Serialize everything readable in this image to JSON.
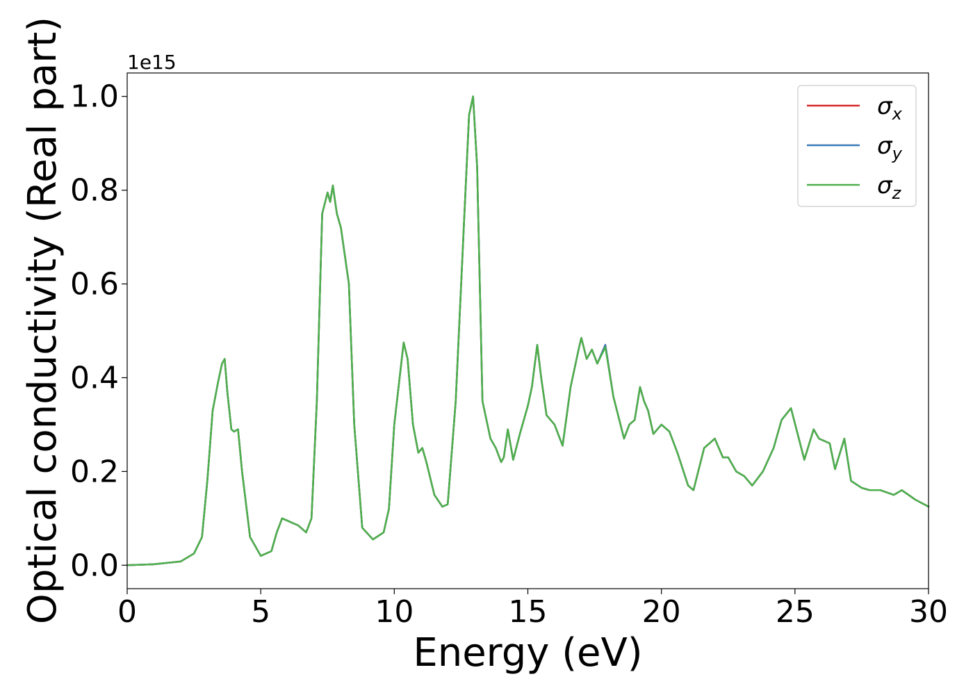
{
  "chart_data": {
    "type": "line",
    "title": "",
    "xlabel": "Energy (eV)",
    "ylabel": "Optical conductivity (Real part)",
    "y_offset_label": "1e15",
    "xlim": [
      0,
      30
    ],
    "ylim": [
      -0.05,
      1.05
    ],
    "x_ticks": [
      0,
      5,
      10,
      15,
      20,
      25,
      30
    ],
    "x_tick_labels": [
      "0",
      "5",
      "10",
      "15",
      "20",
      "25",
      "30"
    ],
    "y_ticks": [
      0.0,
      0.2,
      0.4,
      0.6,
      0.8,
      1.0
    ],
    "y_tick_labels": [
      "0.0",
      "0.2",
      "0.4",
      "0.6",
      "0.8",
      "1.0"
    ],
    "grid": false,
    "legend": {
      "position": "top-right",
      "entries": [
        {
          "symbol": "σ",
          "subscript": "x",
          "color": "#d62728"
        },
        {
          "symbol": "σ",
          "subscript": "y",
          "color": "#3a7ab8"
        },
        {
          "symbol": "σ",
          "subscript": "z",
          "color": "#4daf4a"
        }
      ]
    },
    "x": [
      0,
      1,
      2,
      2.5,
      2.8,
      3.0,
      3.2,
      3.4,
      3.55,
      3.65,
      3.75,
      3.9,
      4.0,
      4.15,
      4.3,
      4.6,
      5.0,
      5.4,
      5.6,
      5.8,
      6.0,
      6.2,
      6.4,
      6.7,
      6.9,
      7.1,
      7.3,
      7.5,
      7.6,
      7.7,
      7.85,
      8.0,
      8.3,
      8.5,
      8.8,
      9.2,
      9.6,
      9.8,
      10.0,
      10.2,
      10.35,
      10.5,
      10.7,
      10.9,
      11.05,
      11.2,
      11.5,
      11.8,
      12.0,
      12.3,
      12.6,
      12.8,
      12.95,
      13.1,
      13.3,
      13.6,
      13.8,
      14.0,
      14.1,
      14.25,
      14.45,
      14.7,
      15.0,
      15.15,
      15.35,
      15.5,
      15.7,
      16.0,
      16.3,
      16.6,
      16.9,
      17.0,
      17.2,
      17.4,
      17.6,
      17.9,
      18.2,
      18.6,
      18.8,
      19.0,
      19.2,
      19.35,
      19.5,
      19.7,
      20.0,
      20.3,
      20.6,
      21.0,
      21.2,
      21.6,
      21.8,
      22.0,
      22.3,
      22.5,
      22.8,
      23.1,
      23.4,
      23.8,
      24.2,
      24.5,
      24.85,
      25.1,
      25.35,
      25.7,
      25.9,
      26.1,
      26.3,
      26.5,
      26.85,
      27.1,
      27.5,
      27.8,
      28.2,
      28.7,
      29.0,
      29.5,
      30.0
    ],
    "series": [
      {
        "name": "",
        "color": "#d62728",
        "values": [
          0.0,
          0.002,
          0.008,
          0.025,
          0.06,
          0.18,
          0.33,
          0.39,
          0.43,
          0.44,
          0.37,
          0.29,
          0.285,
          0.29,
          0.2,
          0.06,
          0.02,
          0.03,
          0.07,
          0.1,
          0.095,
          0.09,
          0.085,
          0.07,
          0.1,
          0.35,
          0.75,
          0.795,
          0.775,
          0.81,
          0.75,
          0.72,
          0.6,
          0.3,
          0.08,
          0.055,
          0.07,
          0.12,
          0.3,
          0.4,
          0.475,
          0.44,
          0.3,
          0.24,
          0.25,
          0.22,
          0.15,
          0.125,
          0.13,
          0.35,
          0.72,
          0.96,
          1.0,
          0.85,
          0.35,
          0.27,
          0.25,
          0.22,
          0.23,
          0.29,
          0.225,
          0.28,
          0.34,
          0.38,
          0.47,
          0.4,
          0.32,
          0.3,
          0.255,
          0.38,
          0.46,
          0.485,
          0.44,
          0.46,
          0.43,
          0.47,
          0.36,
          0.27,
          0.3,
          0.31,
          0.38,
          0.35,
          0.33,
          0.28,
          0.3,
          0.285,
          0.24,
          0.17,
          0.16,
          0.25,
          0.26,
          0.27,
          0.23,
          0.23,
          0.2,
          0.19,
          0.17,
          0.2,
          0.25,
          0.31,
          0.335,
          0.28,
          0.225,
          0.29,
          0.27,
          0.265,
          0.26,
          0.205,
          0.27,
          0.18,
          0.165,
          0.16,
          0.16,
          0.15,
          0.16,
          0.14,
          0.125
        ]
      },
      {
        "name": "",
        "color": "#3a7ab8",
        "values": [
          0.0,
          0.002,
          0.008,
          0.025,
          0.06,
          0.18,
          0.33,
          0.39,
          0.43,
          0.44,
          0.37,
          0.29,
          0.285,
          0.29,
          0.2,
          0.06,
          0.02,
          0.03,
          0.07,
          0.1,
          0.095,
          0.09,
          0.085,
          0.07,
          0.1,
          0.35,
          0.75,
          0.795,
          0.775,
          0.81,
          0.75,
          0.72,
          0.6,
          0.3,
          0.08,
          0.055,
          0.07,
          0.12,
          0.3,
          0.4,
          0.475,
          0.44,
          0.3,
          0.24,
          0.25,
          0.22,
          0.15,
          0.125,
          0.13,
          0.35,
          0.72,
          0.96,
          1.0,
          0.85,
          0.35,
          0.27,
          0.25,
          0.22,
          0.23,
          0.29,
          0.225,
          0.28,
          0.34,
          0.38,
          0.47,
          0.4,
          0.32,
          0.3,
          0.255,
          0.38,
          0.46,
          0.485,
          0.44,
          0.46,
          0.43,
          0.47,
          0.36,
          0.27,
          0.3,
          0.31,
          0.38,
          0.35,
          0.33,
          0.28,
          0.3,
          0.285,
          0.24,
          0.17,
          0.16,
          0.25,
          0.26,
          0.27,
          0.23,
          0.23,
          0.2,
          0.19,
          0.17,
          0.2,
          0.25,
          0.31,
          0.335,
          0.28,
          0.225,
          0.29,
          0.27,
          0.265,
          0.26,
          0.205,
          0.27,
          0.18,
          0.165,
          0.16,
          0.16,
          0.15,
          0.16,
          0.14,
          0.125
        ]
      },
      {
        "name": "",
        "color": "#4daf4a",
        "values": [
          0.0,
          0.002,
          0.008,
          0.025,
          0.06,
          0.18,
          0.33,
          0.39,
          0.43,
          0.44,
          0.37,
          0.29,
          0.285,
          0.29,
          0.2,
          0.06,
          0.02,
          0.03,
          0.07,
          0.1,
          0.095,
          0.09,
          0.085,
          0.07,
          0.1,
          0.35,
          0.75,
          0.795,
          0.775,
          0.81,
          0.75,
          0.72,
          0.6,
          0.3,
          0.08,
          0.055,
          0.07,
          0.12,
          0.3,
          0.4,
          0.475,
          0.44,
          0.3,
          0.24,
          0.25,
          0.22,
          0.15,
          0.125,
          0.13,
          0.35,
          0.72,
          0.96,
          1.0,
          0.85,
          0.35,
          0.27,
          0.25,
          0.22,
          0.23,
          0.29,
          0.225,
          0.28,
          0.34,
          0.38,
          0.47,
          0.4,
          0.32,
          0.3,
          0.255,
          0.38,
          0.46,
          0.485,
          0.44,
          0.46,
          0.43,
          0.465,
          0.36,
          0.27,
          0.3,
          0.31,
          0.38,
          0.35,
          0.33,
          0.28,
          0.3,
          0.285,
          0.24,
          0.17,
          0.16,
          0.25,
          0.26,
          0.27,
          0.23,
          0.23,
          0.2,
          0.19,
          0.17,
          0.2,
          0.25,
          0.31,
          0.335,
          0.28,
          0.225,
          0.29,
          0.27,
          0.265,
          0.26,
          0.205,
          0.27,
          0.18,
          0.165,
          0.16,
          0.16,
          0.15,
          0.16,
          0.14,
          0.125
        ]
      }
    ]
  }
}
